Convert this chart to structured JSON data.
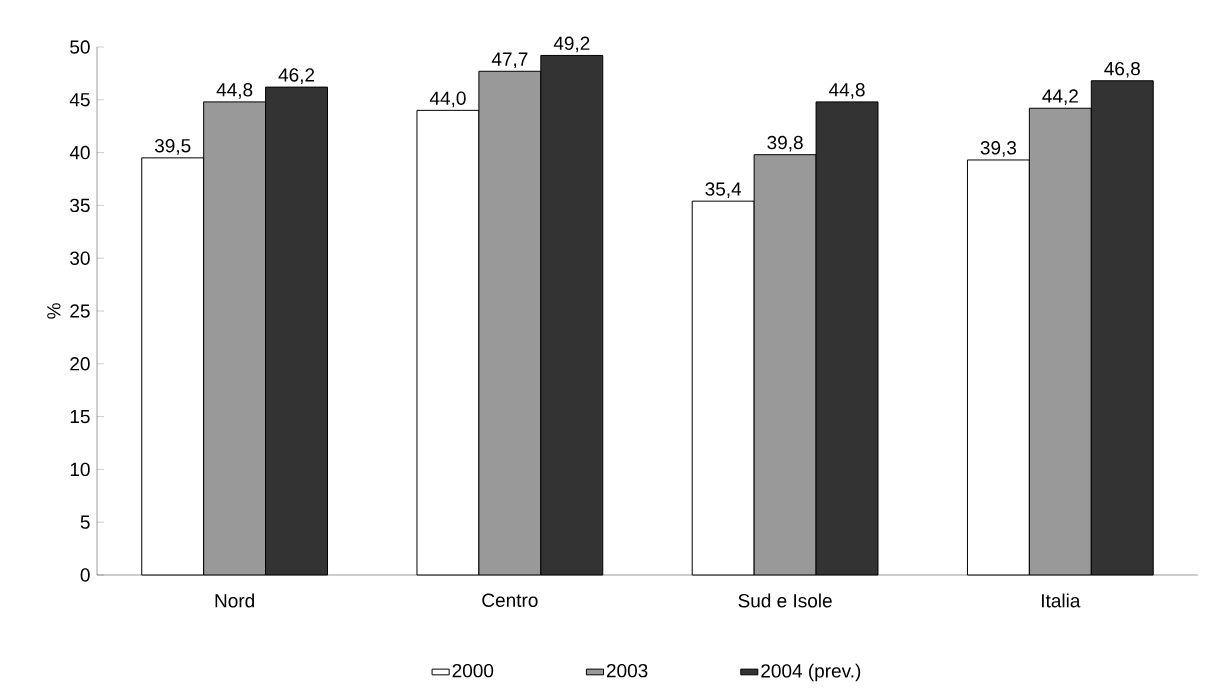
{
  "chart_data": {
    "type": "bar",
    "ylabel": "%",
    "categories": [
      "Nord",
      "Centro",
      "Sud e Isole",
      "Italia"
    ],
    "series": [
      {
        "name": "2000",
        "color": "#ffffff",
        "values": [
          39.5,
          44.0,
          35.4,
          39.3
        ],
        "value_labels": [
          "39,5",
          "44,0",
          "35,4",
          "39,3"
        ]
      },
      {
        "name": "2003",
        "color": "#999999",
        "values": [
          44.8,
          47.7,
          39.8,
          44.2
        ],
        "value_labels": [
          "44,8",
          "47,7",
          "39,8",
          "44,2"
        ]
      },
      {
        "name": "2004 (prev.)",
        "color": "#333333",
        "values": [
          46.2,
          49.2,
          44.8,
          46.8
        ],
        "value_labels": [
          "46,2",
          "49,2",
          "44,8",
          "46,8"
        ]
      }
    ],
    "ylim": [
      0,
      50
    ],
    "yticks": [
      0,
      5,
      10,
      15,
      20,
      25,
      30,
      35,
      40,
      45,
      50
    ],
    "grid": false,
    "legend": "bottom"
  }
}
